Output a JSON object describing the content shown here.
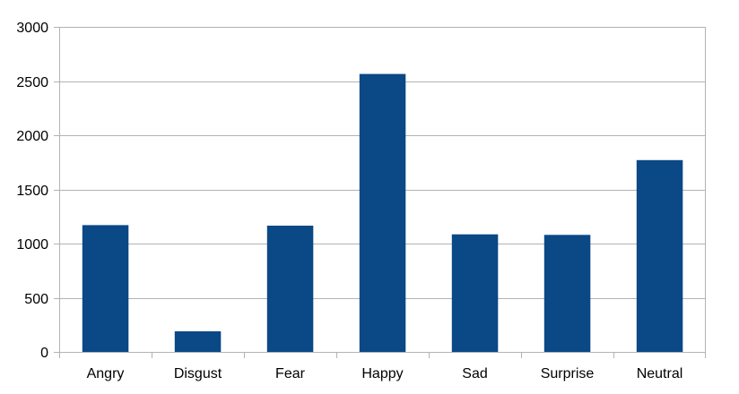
{
  "chart_data": {
    "type": "bar",
    "categories": [
      "Angry",
      "Disgust",
      "Fear",
      "Happy",
      "Sad",
      "Surprise",
      "Neutral"
    ],
    "values": [
      1170,
      190,
      1165,
      2565,
      1085,
      1080,
      1770
    ],
    "ylim": [
      0,
      3000
    ],
    "yticks": [
      0,
      500,
      1000,
      1500,
      2000,
      2500,
      3000
    ],
    "grid": true,
    "legend": "none",
    "colors": {
      "bar": "#0a4886",
      "grid": "#b3b3b3",
      "axis": "#b3b3b3"
    }
  }
}
